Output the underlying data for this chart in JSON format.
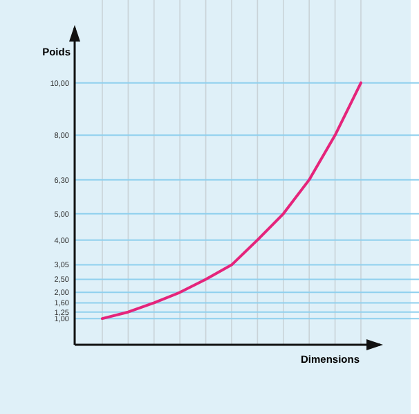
{
  "chart_data": {
    "type": "line",
    "ylabel": "Poids",
    "xlabel": "Dimensions",
    "categories": [
      null,
      null,
      null,
      null,
      null,
      null,
      null,
      null,
      null,
      null,
      null
    ],
    "series": [
      {
        "color": "#e5247b",
        "values": [
          1.0,
          1.25,
          1.6,
          2.0,
          2.5,
          3.05,
          4.0,
          5.0,
          6.3,
          8.0,
          10.0
        ]
      }
    ],
    "ylim": [
      0,
      12
    ],
    "yticks": [
      {
        "value": 1,
        "label": "1,00"
      },
      {
        "value": 1.25,
        "label": "1,25"
      },
      {
        "value": 1.6,
        "label": "1,60"
      },
      {
        "value": 2,
        "label": "2,00"
      },
      {
        "value": 2.5,
        "label": "2,50"
      },
      {
        "value": 3.05,
        "label": "3,05"
      },
      {
        "value": 4,
        "label": "4,00"
      },
      {
        "value": 5,
        "label": "5,00"
      },
      {
        "value": 6.3,
        "label": "6,30"
      },
      {
        "value": 8,
        "label": "8,00"
      },
      {
        "value": 10,
        "label": "10,00"
      }
    ],
    "grid": true,
    "marker": "none",
    "line_style": "solid"
  }
}
